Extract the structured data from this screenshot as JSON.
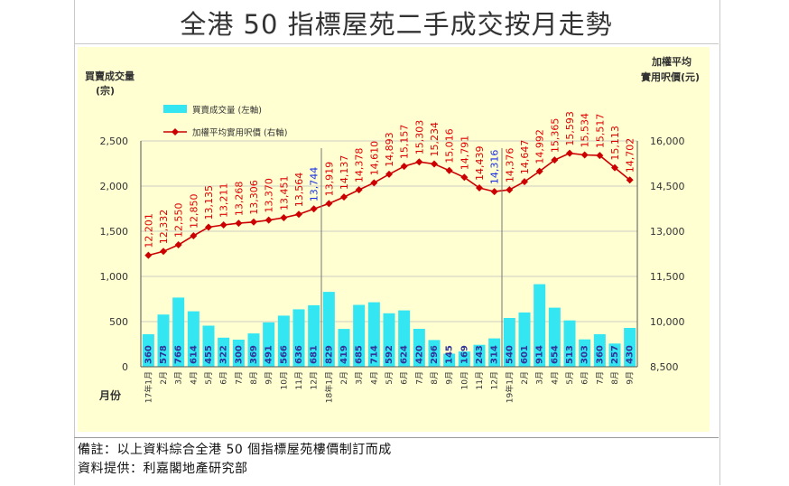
{
  "header": {
    "title": "全港 50 指標屋苑二手成交按月走勢"
  },
  "notes": {
    "remark": "備註：以上資料綜合全港 50 個指標屋苑樓價制訂而成",
    "source": "資料提供：利嘉閣地產研究部"
  },
  "colors": {
    "plot_bg": "#ffffd2",
    "bar": "#33e6f2",
    "line": "#cc0000",
    "value_red": "#e00000",
    "value_blue": "#1a2fe0",
    "axis_text": "#333333"
  },
  "chart_data": {
    "type": "bar+line",
    "left_axis_title": [
      "買賣成交量",
      "(宗)"
    ],
    "right_axis_title": [
      "加權平均",
      "實用呎價(元)"
    ],
    "x_axis_title": "月份",
    "left_ticks": [
      "2,500",
      "2,000",
      "1,500",
      "1,000",
      "500",
      "0"
    ],
    "left_ylim": [
      0,
      2500
    ],
    "right_ticks": [
      "16,000",
      "14,500",
      "13,000",
      "11,500",
      "10,000",
      "8,500"
    ],
    "right_ylim": [
      8500,
      16000
    ],
    "grid": true,
    "legend_placement": "top-left",
    "categories": [
      "17年1月",
      "2月",
      "3月",
      "4月",
      "5月",
      "6月",
      "7月",
      "8月",
      "9月",
      "10月",
      "11月",
      "12月",
      "18年1月",
      "2月",
      "3月",
      "4月",
      "5月",
      "6月",
      "7月",
      "8月",
      "9月",
      "10月",
      "11月",
      "12月",
      "19年1月",
      "2月",
      "3月",
      "4月",
      "5月",
      "6月",
      "7月",
      "8月",
      "9月"
    ],
    "series": [
      {
        "name": "買賣成交量 (左軸)",
        "axis": "left",
        "kind": "bar",
        "values": [
          360,
          578,
          766,
          614,
          455,
          322,
          300,
          369,
          491,
          566,
          636,
          681,
          829,
          419,
          685,
          714,
          592,
          624,
          420,
          296,
          145,
          169,
          243,
          314,
          540,
          601,
          914,
          654,
          513,
          303,
          360,
          257,
          430
        ],
        "labels": [
          "360",
          "578",
          "766",
          "614",
          "455",
          "322",
          "300",
          "369",
          "491",
          "566",
          "636",
          "681",
          "829",
          "419",
          "685",
          "714",
          "592",
          "624",
          "420",
          "296",
          "145",
          "169",
          "243",
          "314",
          "540",
          "601",
          "914",
          "654",
          "513",
          "303",
          "360",
          "257",
          "430"
        ]
      },
      {
        "name": "加權平均實用呎價 (右軸)",
        "axis": "right",
        "kind": "line",
        "values": [
          12201,
          12332,
          12550,
          12850,
          13135,
          13211,
          13268,
          13306,
          13370,
          13451,
          13564,
          13744,
          13919,
          14137,
          14378,
          14610,
          14893,
          15157,
          15303,
          15234,
          15016,
          14791,
          14439,
          14316,
          14376,
          14647,
          14992,
          15365,
          15593,
          15534,
          15517,
          15113,
          14702
        ],
        "labels": [
          "12,201",
          "12,332",
          "12,550",
          "12,850",
          "13,135",
          "13,211",
          "13,268",
          "13,306",
          "13,370",
          "13,451",
          "13,564",
          "13,744",
          "13,919",
          "14,137",
          "14,378",
          "14,610",
          "14,893",
          "15,157",
          "15,303",
          "15,234",
          "15,016",
          "14,791",
          "14,439",
          "14,316",
          "14,376",
          "14,647",
          "14,992",
          "15,365",
          "15,593",
          "15,534",
          "15,517",
          "15,113",
          "14,702"
        ],
        "label_colors": [
          "red",
          "red",
          "red",
          "red",
          "red",
          "red",
          "red",
          "red",
          "red",
          "red",
          "red",
          "blue",
          "red",
          "red",
          "red",
          "red",
          "red",
          "red",
          "red",
          "red",
          "red",
          "red",
          "red",
          "blue",
          "red",
          "red",
          "red",
          "red",
          "red",
          "red",
          "red",
          "red",
          "red"
        ]
      }
    ],
    "legend": [
      {
        "kind": "bar",
        "label": "買賣成交量 (左軸)"
      },
      {
        "kind": "line",
        "label": "加權平均實用呎價 (右軸)"
      }
    ]
  }
}
